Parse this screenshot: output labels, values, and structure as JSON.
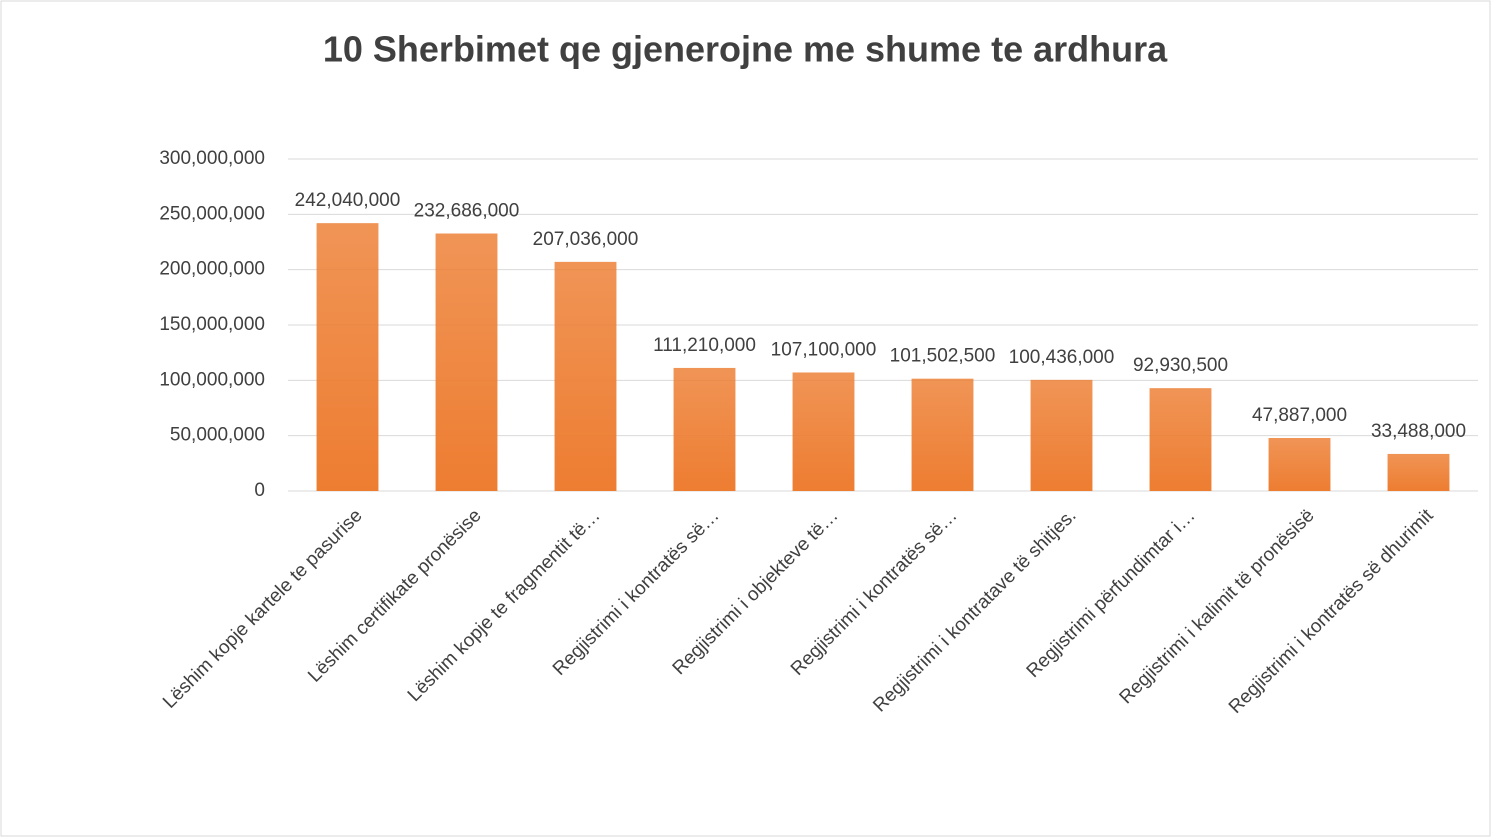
{
  "chart_data": {
    "type": "bar",
    "title": "10 Sherbimet qe gjenerojne me shume te ardhura",
    "categories": [
      "Lëshim kopje kartele te pasurise",
      "Lëshim certifikate pronësise",
      "Lëshim kopje te fragmentit të…",
      "Regjistrimi i kontratës së…",
      "Regjistrimi i objekteve të…",
      "Regjistrimi i kontratës së…",
      "Regjistrimi i kontratave të shitjes.",
      "Regjistrimi përfundimtar i…",
      "Regjistrimi i kalimit të pronësisë",
      "Regjistrimi i kontratës së dhurimit"
    ],
    "values": [
      242040000,
      232686000,
      207036000,
      111210000,
      107100000,
      101502500,
      100436000,
      92930500,
      47887000,
      33488000
    ],
    "value_labels": [
      "242,040,000",
      "232,686,000",
      "207,036,000",
      "111,210,000",
      "107,100,000",
      "101,502,500",
      "100,436,000",
      "92,930,500",
      "47,887,000",
      "33,488,000"
    ],
    "color": "#ed7d31",
    "ylim": [
      0,
      300000000
    ],
    "yticks": [
      0,
      {
        "value": 50000000,
        "label": "50,000,000"
      },
      {
        "value": 100000000,
        "label": "100,000,000"
      },
      {
        "value": 150000000,
        "label": "150,000,000"
      },
      {
        "value": 200000000,
        "label": "200,000,000"
      },
      {
        "value": 250000000,
        "label": "250,000,000"
      },
      {
        "value": 300000000,
        "label": "300,000,000"
      }
    ],
    "grid": true
  }
}
